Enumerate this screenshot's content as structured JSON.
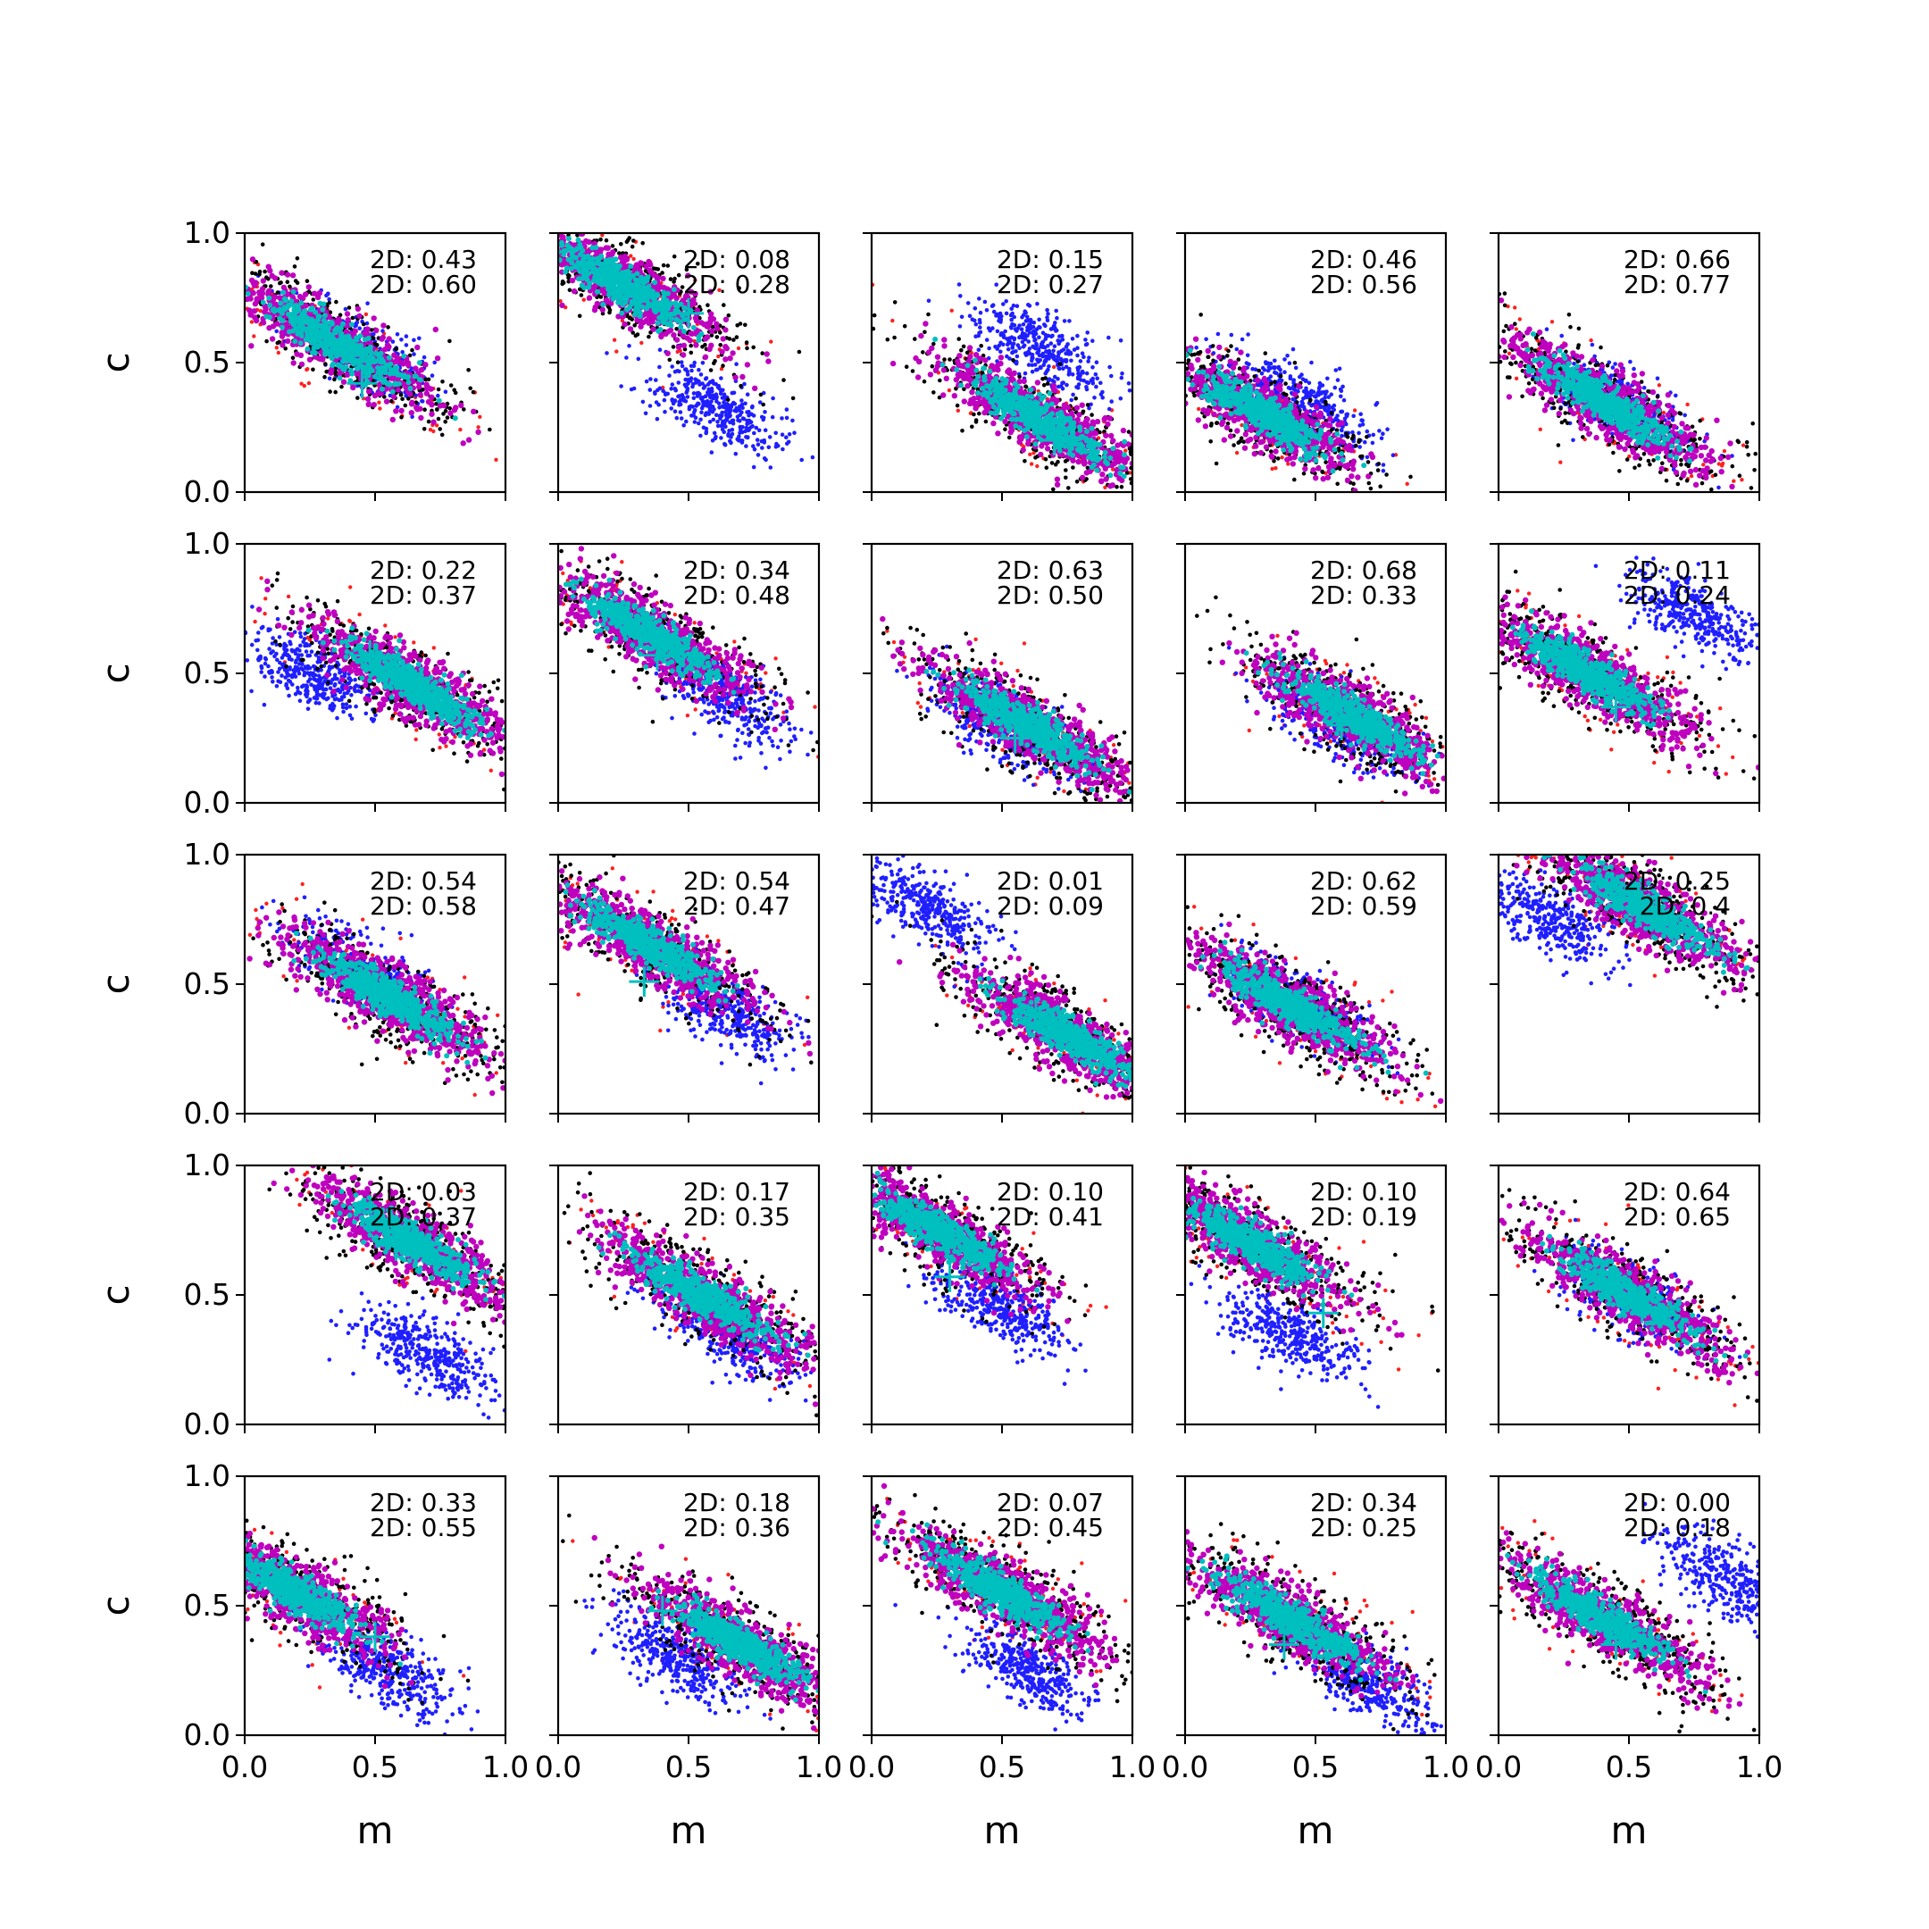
{
  "colors": {
    "black": "#000000",
    "red": "#ff2020",
    "blue": "#1f1fff",
    "magenta": "#bf00bf",
    "cyan": "#00bfbf"
  },
  "chart_data": {
    "type": "scatter",
    "grid": {
      "rows": 5,
      "cols": 5
    },
    "xlabel": "m",
    "ylabel": "c",
    "xlim": [
      0,
      1
    ],
    "ylim": [
      0,
      1
    ],
    "xticks": [
      "0.0",
      "0.5",
      "1.0"
    ],
    "yticks": [
      "0.0",
      "0.5",
      "1.0"
    ],
    "legend": "none",
    "grid_lines": false,
    "panels": [
      {
        "annotations": [
          "2D: 0.43",
          "2D: 0.60"
        ],
        "cloud": {
          "m": 0.35,
          "c": 0.58,
          "spread": 0.22
        },
        "blue": {
          "m": 0.45,
          "c": 0.53,
          "spread": 0.15
        },
        "cross": {
          "m": 0.45,
          "c": 0.42
        }
      },
      {
        "annotations": [
          "2D: 0.08",
          "2D: 0.28"
        ],
        "cloud": {
          "m": 0.25,
          "c": 0.8,
          "spread": 0.2
        },
        "blue": {
          "m": 0.6,
          "c": 0.33,
          "spread": 0.15
        },
        "cross": {
          "m": 0.5,
          "c": 0.69
        }
      },
      {
        "annotations": [
          "2D: 0.15",
          "2D: 0.27"
        ],
        "cloud": {
          "m": 0.65,
          "c": 0.28,
          "spread": 0.22
        },
        "blue": {
          "m": 0.65,
          "c": 0.55,
          "spread": 0.15
        },
        "cross": {
          "m": 0.7,
          "c": 0.2
        }
      },
      {
        "annotations": [
          "2D: 0.46",
          "2D: 0.56"
        ],
        "cloud": {
          "m": 0.3,
          "c": 0.3,
          "spread": 0.2
        },
        "blue": {
          "m": 0.45,
          "c": 0.35,
          "spread": 0.15
        },
        "cross": {
          "m": 0.35,
          "c": 0.27
        }
      },
      {
        "annotations": [
          "2D: 0.66",
          "2D: 0.77"
        ],
        "cloud": {
          "m": 0.4,
          "c": 0.35,
          "spread": 0.22
        },
        "blue": {
          "m": 0.45,
          "c": 0.34,
          "spread": 0.15
        },
        "cross": {
          "m": 0.5,
          "c": 0.3
        }
      },
      {
        "annotations": [
          "2D: 0.22",
          "2D: 0.37"
        ],
        "cloud": {
          "m": 0.65,
          "c": 0.45,
          "spread": 0.22
        },
        "blue": {
          "m": 0.25,
          "c": 0.5,
          "spread": 0.15
        },
        "cross": {
          "m": 0.48,
          "c": 0.57
        }
      },
      {
        "annotations": [
          "2D: 0.34",
          "2D: 0.48"
        ],
        "cloud": {
          "m": 0.35,
          "c": 0.65,
          "spread": 0.22
        },
        "blue": {
          "m": 0.65,
          "c": 0.4,
          "spread": 0.15
        },
        "cross": {
          "m": 0.38,
          "c": 0.57
        }
      },
      {
        "annotations": [
          "2D: 0.63",
          "2D: 0.50"
        ],
        "cloud": {
          "m": 0.6,
          "c": 0.3,
          "spread": 0.22
        },
        "blue": {
          "m": 0.5,
          "c": 0.3,
          "spread": 0.15
        },
        "cross": {
          "m": 0.55,
          "c": 0.25
        }
      },
      {
        "annotations": [
          "2D: 0.68",
          "2D: 0.33"
        ],
        "cloud": {
          "m": 0.65,
          "c": 0.33,
          "spread": 0.22
        },
        "blue": {
          "m": 0.6,
          "c": 0.3,
          "spread": 0.15
        },
        "cross": {
          "m": 0.6,
          "c": 0.3
        }
      },
      {
        "annotations": [
          "2D: 0.11",
          "2D: 0.24"
        ],
        "cloud": {
          "m": 0.35,
          "c": 0.5,
          "spread": 0.22
        },
        "blue": {
          "m": 0.75,
          "c": 0.72,
          "spread": 0.15
        },
        "cross": {
          "m": 0.45,
          "c": 0.37
        }
      },
      {
        "annotations": [
          "2D: 0.54",
          "2D: 0.58"
        ],
        "cloud": {
          "m": 0.55,
          "c": 0.45,
          "spread": 0.22
        },
        "blue": {
          "m": 0.45,
          "c": 0.55,
          "spread": 0.15
        },
        "cross": {
          "m": 0.55,
          "c": 0.45
        }
      },
      {
        "annotations": [
          "2D: 0.54",
          "2D: 0.47"
        ],
        "cloud": {
          "m": 0.35,
          "c": 0.65,
          "spread": 0.22
        },
        "blue": {
          "m": 0.65,
          "c": 0.4,
          "spread": 0.15
        },
        "cross": {
          "m": 0.33,
          "c": 0.51
        }
      },
      {
        "annotations": [
          "2D: 0.01",
          "2D: 0.09"
        ],
        "cloud": {
          "m": 0.75,
          "c": 0.3,
          "spread": 0.22
        },
        "blue": {
          "m": 0.2,
          "c": 0.8,
          "spread": 0.15
        },
        "cross": {
          "m": 0.63,
          "c": 0.39
        }
      },
      {
        "annotations": [
          "2D: 0.62",
          "2D: 0.59"
        ],
        "cloud": {
          "m": 0.4,
          "c": 0.42,
          "spread": 0.22
        },
        "blue": {
          "m": 0.45,
          "c": 0.42,
          "spread": 0.15
        },
        "cross": {
          "m": 0.45,
          "c": 0.4
        }
      },
      {
        "annotations": [
          "2D: 0.25",
          "2D: 0.4"
        ],
        "cloud": {
          "m": 0.55,
          "c": 0.8,
          "spread": 0.22
        },
        "blue": {
          "m": 0.2,
          "c": 0.75,
          "spread": 0.15
        },
        "cross": {
          "m": 0.55,
          "c": 0.8
        }
      },
      {
        "annotations": [
          "2D: 0.03",
          "2D: 0.37"
        ],
        "cloud": {
          "m": 0.65,
          "c": 0.7,
          "spread": 0.22
        },
        "blue": {
          "m": 0.7,
          "c": 0.27,
          "spread": 0.15
        },
        "cross": {
          "m": 0.58,
          "c": 0.69
        }
      },
      {
        "annotations": [
          "2D: 0.17",
          "2D: 0.35"
        ],
        "cloud": {
          "m": 0.55,
          "c": 0.5,
          "spread": 0.22
        },
        "blue": {
          "m": 0.65,
          "c": 0.35,
          "spread": 0.15
        },
        "cross": {
          "m": 0.6,
          "c": 0.5
        }
      },
      {
        "annotations": [
          "2D: 0.10",
          "2D: 0.41"
        ],
        "cloud": {
          "m": 0.25,
          "c": 0.75,
          "spread": 0.22
        },
        "blue": {
          "m": 0.5,
          "c": 0.45,
          "spread": 0.15
        },
        "cross": {
          "m": 0.3,
          "c": 0.57
        }
      },
      {
        "annotations": [
          "2D: 0.10",
          "2D: 0.19"
        ],
        "cloud": {
          "m": 0.25,
          "c": 0.7,
          "spread": 0.22
        },
        "blue": {
          "m": 0.4,
          "c": 0.35,
          "spread": 0.15
        },
        "cross": {
          "m": 0.53,
          "c": 0.43
        }
      },
      {
        "annotations": [
          "2D: 0.64",
          "2D: 0.65"
        ],
        "cloud": {
          "m": 0.5,
          "c": 0.5,
          "spread": 0.22
        },
        "blue": {
          "m": 0.5,
          "c": 0.5,
          "spread": 0.15
        },
        "cross": {
          "m": 0.55,
          "c": 0.45
        }
      },
      {
        "annotations": [
          "2D: 0.33",
          "2D: 0.55"
        ],
        "cloud": {
          "m": 0.2,
          "c": 0.55,
          "spread": 0.2
        },
        "blue": {
          "m": 0.55,
          "c": 0.25,
          "spread": 0.15
        },
        "cross": {
          "m": 0.5,
          "c": 0.38
        }
      },
      {
        "annotations": [
          "2D: 0.18",
          "2D: 0.36"
        ],
        "cloud": {
          "m": 0.7,
          "c": 0.35,
          "spread": 0.22
        },
        "blue": {
          "m": 0.45,
          "c": 0.3,
          "spread": 0.15
        },
        "cross": {
          "m": 0.4,
          "c": 0.48
        }
      },
      {
        "annotations": [
          "2D: 0.07",
          "2D: 0.45"
        ],
        "cloud": {
          "m": 0.5,
          "c": 0.55,
          "spread": 0.22
        },
        "blue": {
          "m": 0.6,
          "c": 0.25,
          "spread": 0.15
        },
        "cross": {
          "m": 0.55,
          "c": 0.55
        }
      },
      {
        "annotations": [
          "2D: 0.34",
          "2D: 0.25"
        ],
        "cloud": {
          "m": 0.4,
          "c": 0.45,
          "spread": 0.22
        },
        "blue": {
          "m": 0.7,
          "c": 0.2,
          "spread": 0.15
        },
        "cross": {
          "m": 0.38,
          "c": 0.35
        }
      },
      {
        "annotations": [
          "2D: 0.00",
          "2D: 0.18"
        ],
        "cloud": {
          "m": 0.4,
          "c": 0.45,
          "spread": 0.22
        },
        "blue": {
          "m": 0.88,
          "c": 0.6,
          "spread": 0.15
        },
        "cross": {
          "m": 0.45,
          "c": 0.35
        }
      }
    ]
  }
}
